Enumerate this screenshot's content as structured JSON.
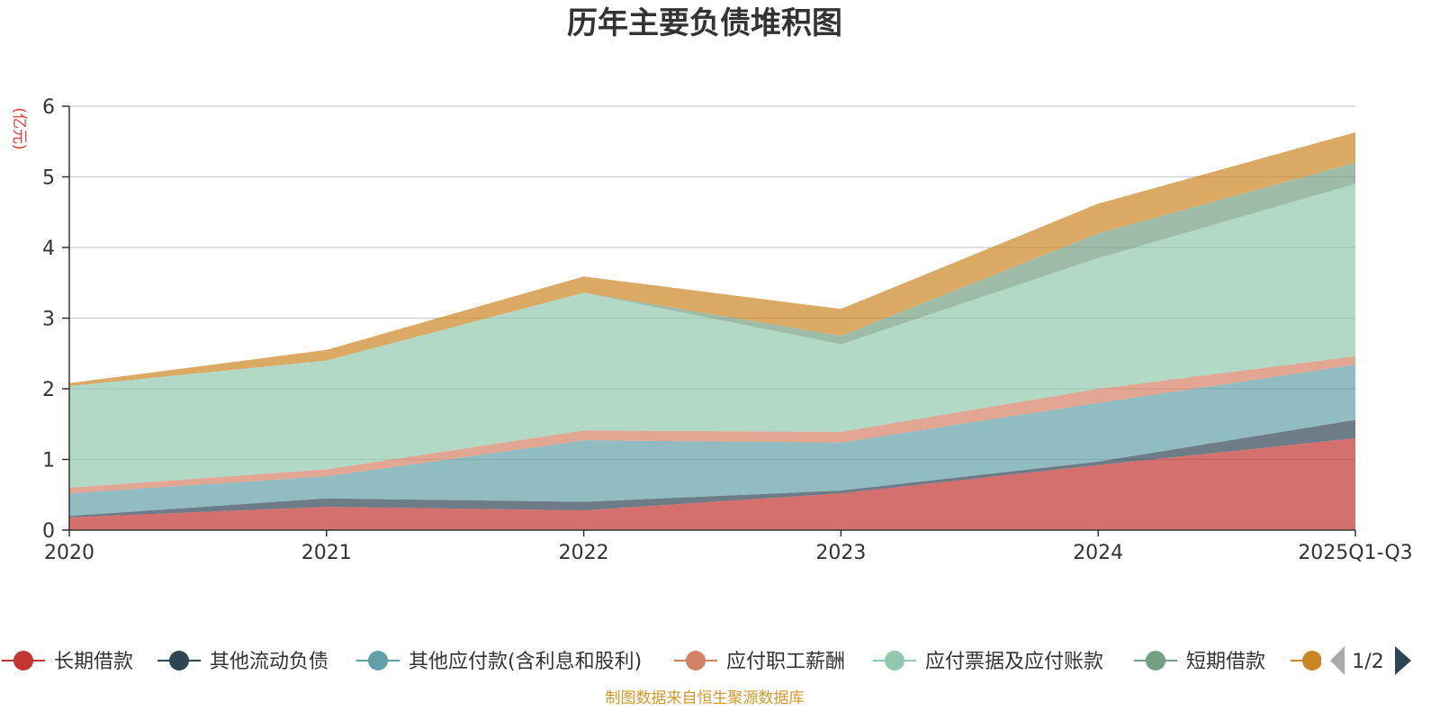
{
  "chart_data": {
    "type": "area",
    "stacked": true,
    "title": "历年主要负债堆积图",
    "unit_label": "(亿元)",
    "categories": [
      "2020",
      "2021",
      "2022",
      "2023",
      "2024",
      "2025Q1-Q3"
    ],
    "ylim": [
      0,
      6
    ],
    "yticks": [
      "0",
      "1",
      "2",
      "3",
      "4",
      "5",
      "6"
    ],
    "grid": true,
    "legend_position": "bottom",
    "series": [
      {
        "name": "长期借款",
        "color": "#c23531",
        "values": [
          0.18,
          0.33,
          0.28,
          0.52,
          0.92,
          1.3
        ]
      },
      {
        "name": "其他流动负债",
        "color": "#2f4554",
        "values": [
          0.02,
          0.12,
          0.12,
          0.04,
          0.05,
          0.26
        ]
      },
      {
        "name": "其他应付款(含利息和股利)",
        "color": "#61a0a8",
        "values": [
          0.32,
          0.31,
          0.87,
          0.68,
          0.83,
          0.78
        ]
      },
      {
        "name": "应付职工薪酬",
        "color": "#d48265",
        "values": [
          0.08,
          0.1,
          0.14,
          0.15,
          0.2,
          0.12
        ]
      },
      {
        "name": "应付票据及应付账款",
        "color": "#91c7ae",
        "values": [
          1.44,
          1.54,
          1.95,
          1.24,
          1.85,
          2.44
        ]
      },
      {
        "name": "短期借款",
        "color": "#749f83",
        "values": [
          0.0,
          0.0,
          0.0,
          0.12,
          0.35,
          0.3
        ]
      },
      {
        "name": "",
        "color": "#ca8622",
        "values": [
          0.04,
          0.15,
          0.23,
          0.38,
          0.42,
          0.43
        ]
      }
    ]
  },
  "legend": {
    "page_text": "1/2"
  },
  "source_text": "制图数据来自恒生聚源数据库"
}
